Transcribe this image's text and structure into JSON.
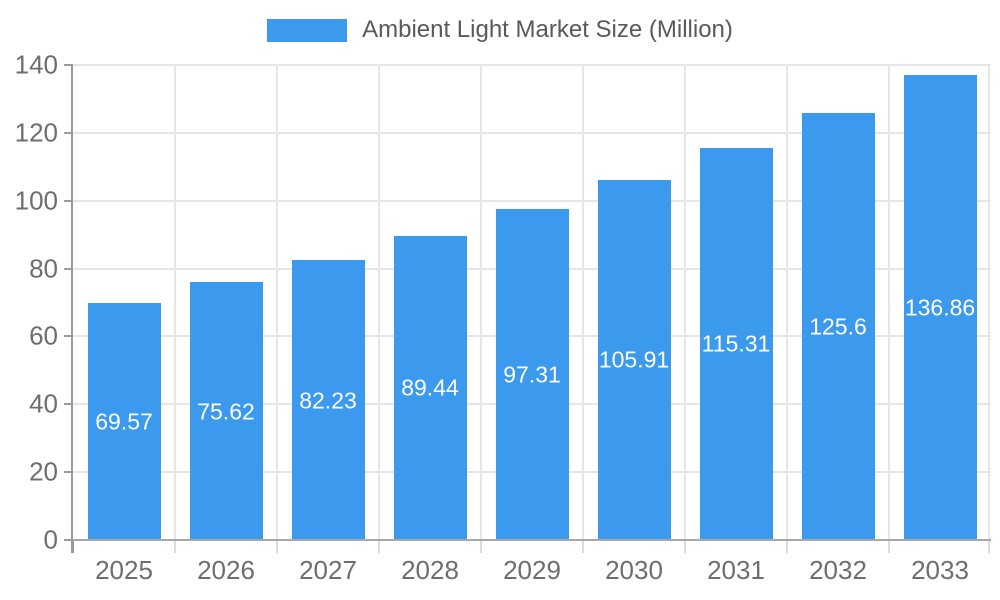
{
  "legend": {
    "label": "Ambient Light Market Size (Million)"
  },
  "chart_data": {
    "type": "bar",
    "title": "Ambient Light Market Size (Million)",
    "series_name": "Ambient Light Market Size (Million)",
    "categories": [
      "2025",
      "2026",
      "2027",
      "2028",
      "2029",
      "2030",
      "2031",
      "2032",
      "2033"
    ],
    "values": [
      69.57,
      75.62,
      82.23,
      89.44,
      97.31,
      105.91,
      115.31,
      125.6,
      136.86
    ],
    "value_labels": [
      "69.57",
      "75.62",
      "82.23",
      "89.44",
      "97.31",
      "105.91",
      "115.31",
      "125.6",
      "136.86"
    ],
    "xlabel": "",
    "ylabel": "",
    "ylim": [
      0,
      140
    ],
    "yticks": [
      0,
      20,
      40,
      60,
      80,
      100,
      120,
      140
    ],
    "grid": "both",
    "legend_position": "top-center",
    "colors": {
      "bar": "#3b99ee",
      "value_label": "#ffffff",
      "axis_text": "#6e6e6e",
      "legend_text": "#595959",
      "gridline": "#e6e6e6",
      "axis_line": "#a8a8a8",
      "x_tick": "#dcdcdc",
      "y_axis_line": "#9a9a9a",
      "background": "#ffffff"
    }
  }
}
